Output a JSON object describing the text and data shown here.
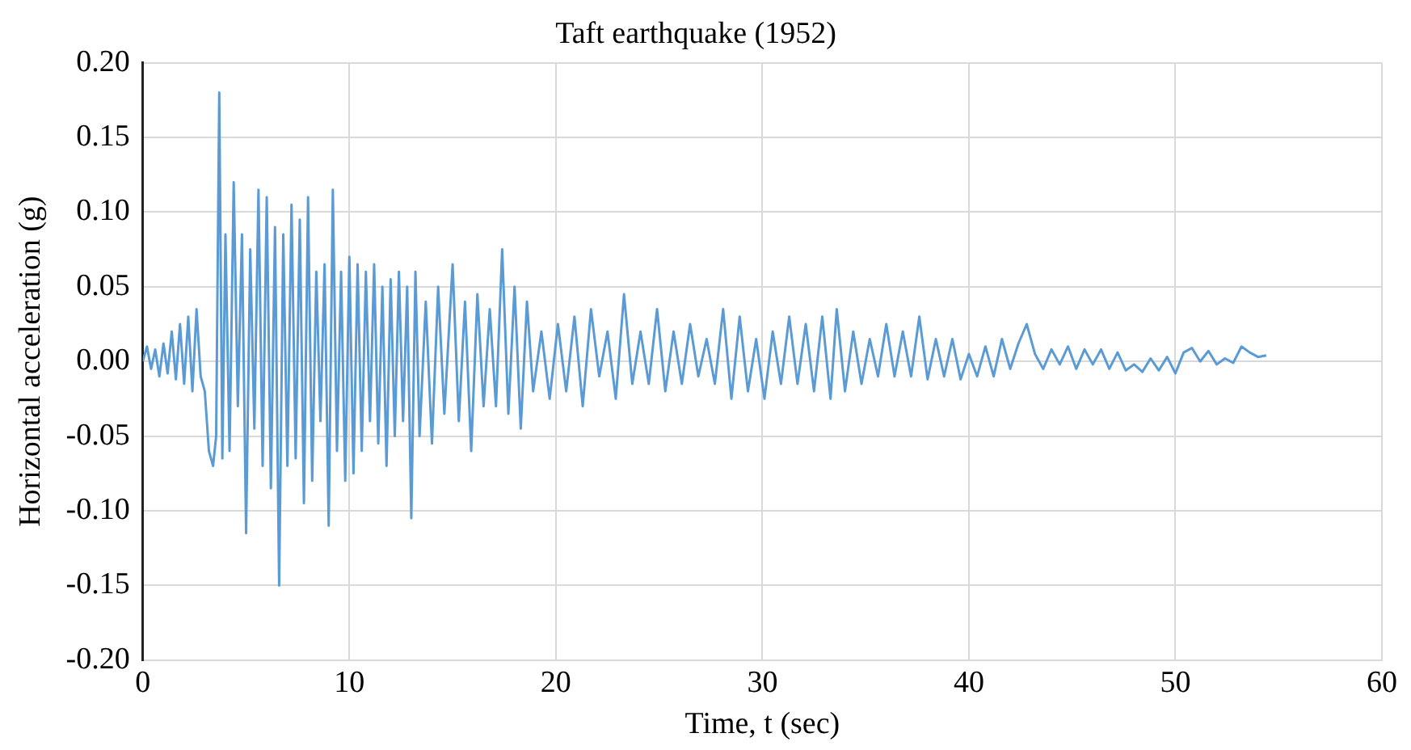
{
  "chart_data": {
    "type": "line",
    "title": "Taft earthquake (1952)",
    "xlabel": "Time, t (sec)",
    "ylabel": "Horizontal acceleration (g)",
    "color": "#5b9bd5",
    "marker": "none",
    "line_style": "solid",
    "grid": true,
    "xlim": [
      0,
      60
    ],
    "xticks": [
      0,
      10,
      20,
      30,
      40,
      50,
      60
    ],
    "ylim": [
      -0.2,
      0.2
    ],
    "yticks": [
      {
        "value": -0.2,
        "label": "-0.20"
      },
      {
        "value": -0.15,
        "label": "-0.15"
      },
      {
        "value": -0.1,
        "label": "-0.10"
      },
      {
        "value": -0.05,
        "label": "-0.05"
      },
      {
        "value": 0,
        "label": "0.00"
      },
      {
        "value": 0.05,
        "label": "0.05"
      },
      {
        "value": 0.1,
        "label": "0.10"
      },
      {
        "value": 0.15,
        "label": "0.15"
      },
      {
        "value": 0.2,
        "label": "0.20"
      }
    ],
    "x": [
      0,
      0.2,
      0.4,
      0.6,
      0.8,
      1.0,
      1.2,
      1.4,
      1.6,
      1.8,
      2.0,
      2.2,
      2.4,
      2.6,
      2.8,
      3.0,
      3.2,
      3.4,
      3.55,
      3.7,
      3.85,
      4.0,
      4.2,
      4.4,
      4.6,
      4.8,
      5.0,
      5.2,
      5.4,
      5.6,
      5.8,
      6.0,
      6.2,
      6.4,
      6.6,
      6.8,
      7.0,
      7.2,
      7.4,
      7.6,
      7.8,
      8.0,
      8.2,
      8.4,
      8.6,
      8.8,
      9.0,
      9.2,
      9.4,
      9.6,
      9.8,
      10.0,
      10.2,
      10.4,
      10.6,
      10.8,
      11.0,
      11.2,
      11.4,
      11.6,
      11.8,
      12.0,
      12.2,
      12.4,
      12.6,
      12.8,
      13.0,
      13.2,
      13.4,
      13.7,
      14.0,
      14.3,
      14.6,
      15.0,
      15.3,
      15.6,
      15.9,
      16.2,
      16.5,
      16.8,
      17.1,
      17.4,
      17.7,
      18.0,
      18.3,
      18.6,
      18.9,
      19.3,
      19.7,
      20.1,
      20.5,
      20.9,
      21.3,
      21.7,
      22.1,
      22.5,
      22.9,
      23.3,
      23.7,
      24.1,
      24.5,
      24.9,
      25.3,
      25.7,
      26.1,
      26.5,
      26.9,
      27.3,
      27.7,
      28.1,
      28.5,
      28.9,
      29.3,
      29.7,
      30.1,
      30.5,
      30.9,
      31.3,
      31.7,
      32.1,
      32.5,
      32.9,
      33.3,
      33.6,
      34.0,
      34.4,
      34.8,
      35.2,
      35.6,
      36.0,
      36.4,
      36.8,
      37.2,
      37.6,
      38.0,
      38.4,
      38.8,
      39.2,
      39.6,
      40.0,
      40.4,
      40.8,
      41.2,
      41.6,
      42.0,
      42.4,
      42.8,
      43.2,
      43.6,
      44.0,
      44.4,
      44.8,
      45.2,
      45.6,
      46.0,
      46.4,
      46.8,
      47.2,
      47.6,
      48.0,
      48.4,
      48.8,
      49.2,
      49.6,
      50.0,
      50.4,
      50.8,
      51.2,
      51.6,
      52.0,
      52.4,
      52.8,
      53.2,
      53.6,
      54.0,
      54.4
    ],
    "values": [
      0.0,
      0.01,
      -0.005,
      0.008,
      -0.01,
      0.012,
      -0.008,
      0.02,
      -0.012,
      0.025,
      -0.015,
      0.03,
      -0.02,
      0.035,
      -0.01,
      -0.02,
      -0.06,
      -0.07,
      -0.05,
      0.18,
      -0.065,
      0.085,
      -0.06,
      0.12,
      -0.03,
      0.085,
      -0.115,
      0.075,
      -0.045,
      0.115,
      -0.07,
      0.11,
      -0.085,
      0.09,
      -0.15,
      0.085,
      -0.07,
      0.105,
      -0.065,
      0.095,
      -0.095,
      0.11,
      -0.08,
      0.06,
      -0.04,
      0.065,
      -0.11,
      0.115,
      -0.06,
      0.06,
      -0.08,
      0.07,
      -0.075,
      0.065,
      -0.06,
      0.06,
      -0.04,
      0.065,
      -0.055,
      0.05,
      -0.07,
      0.055,
      -0.05,
      0.06,
      -0.04,
      0.05,
      -0.105,
      0.06,
      -0.05,
      0.04,
      -0.055,
      0.05,
      -0.035,
      0.065,
      -0.04,
      0.04,
      -0.06,
      0.045,
      -0.03,
      0.035,
      -0.03,
      0.075,
      -0.035,
      0.05,
      -0.045,
      0.04,
      -0.02,
      0.02,
      -0.025,
      0.025,
      -0.02,
      0.03,
      -0.03,
      0.035,
      -0.01,
      0.02,
      -0.025,
      0.045,
      -0.015,
      0.02,
      -0.015,
      0.035,
      -0.02,
      0.02,
      -0.015,
      0.025,
      -0.01,
      0.015,
      -0.015,
      0.035,
      -0.025,
      0.03,
      -0.02,
      0.015,
      -0.025,
      0.02,
      -0.015,
      0.03,
      -0.015,
      0.025,
      -0.02,
      0.03,
      -0.025,
      0.035,
      -0.02,
      0.02,
      -0.015,
      0.015,
      -0.01,
      0.025,
      -0.01,
      0.02,
      -0.01,
      0.03,
      -0.012,
      0.015,
      -0.01,
      0.015,
      -0.012,
      0.005,
      -0.01,
      0.01,
      -0.01,
      0.015,
      -0.005,
      0.012,
      0.025,
      0.005,
      -0.005,
      0.008,
      -0.002,
      0.01,
      -0.005,
      0.008,
      -0.002,
      0.008,
      -0.005,
      0.006,
      -0.006,
      -0.002,
      -0.007,
      0.002,
      -0.006,
      0.003,
      -0.008,
      0.006,
      0.009,
      0.0,
      0.007,
      -0.002,
      0.002,
      -0.001,
      0.01,
      0.006,
      0.003,
      0.004
    ]
  }
}
